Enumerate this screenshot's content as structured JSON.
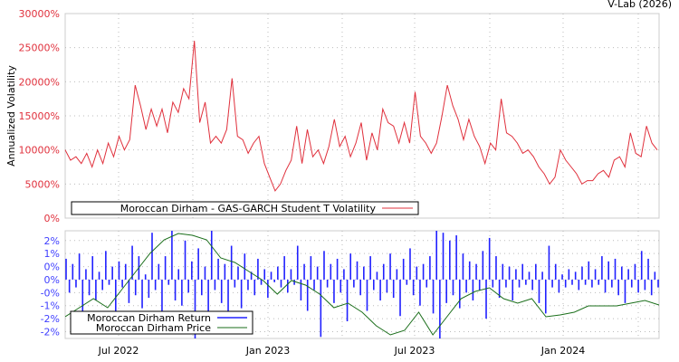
{
  "credit": "V-Lab (2026)",
  "chart_data": [
    {
      "type": "line",
      "title": "",
      "ylabel": "Annualized Volatility",
      "xlabel": "",
      "ylim": [
        0,
        30000
      ],
      "grid": true,
      "y_ticks": [
        {
          "value": 0,
          "label": "0%"
        },
        {
          "value": 5000,
          "label": "5000%"
        },
        {
          "value": 10000,
          "label": "10000%"
        },
        {
          "value": 15000,
          "label": "15000%"
        },
        {
          "value": 20000,
          "label": "20000%"
        },
        {
          "value": 25000,
          "label": "25000%"
        },
        {
          "value": 30000,
          "label": "30000%"
        }
      ],
      "legend": {
        "label": "Moroccan Dirham - GAS-GARCH Student T Volatility",
        "placement": "bottom-left"
      },
      "color": "#e0303c",
      "series": [
        {
          "name": "Moroccan Dirham - GAS-GARCH Student T Volatility",
          "values": [
            10000,
            8500,
            9000,
            8000,
            9500,
            7500,
            10000,
            8000,
            11000,
            9000,
            12000,
            10000,
            11500,
            19500,
            16500,
            13000,
            16000,
            13500,
            16000,
            12500,
            17000,
            15500,
            19000,
            17500,
            26000,
            14000,
            17000,
            11000,
            12000,
            11000,
            13000,
            20500,
            12000,
            11500,
            9500,
            11000,
            12000,
            8000,
            6000,
            4000,
            5000,
            7000,
            8500,
            13500,
            8000,
            13000,
            9000,
            10000,
            8000,
            10500,
            14500,
            10500,
            12000,
            9000,
            11000,
            14000,
            8500,
            12500,
            10000,
            16000,
            14000,
            13500,
            11000,
            14000,
            11000,
            18500,
            12000,
            11000,
            9500,
            11000,
            15000,
            19500,
            16500,
            14500,
            11500,
            14500,
            12000,
            10500,
            8000,
            11000,
            10000,
            17500,
            12500,
            12000,
            11000,
            9500,
            10000,
            9000,
            7500,
            6500,
            5000,
            6000,
            10000,
            8500,
            7500,
            6500,
            5000,
            5500,
            5500,
            6500,
            7000,
            6000,
            8500,
            9000,
            7500,
            12500,
            9500,
            9000,
            13500,
            11000,
            10000
          ]
        }
      ]
    },
    {
      "type": "bar",
      "title": "",
      "ylabel": "",
      "ylim": [
        -2.26,
        1.875
      ],
      "grid": true,
      "y_ticks": [
        {
          "value": 1.5,
          "label": "2%"
        },
        {
          "value": 1.0,
          "label": "1%"
        },
        {
          "value": 0.5,
          "label": "0%"
        },
        {
          "value": 0,
          "label": "0%"
        },
        {
          "value": -0.5,
          "label": "-0%"
        },
        {
          "value": -1.0,
          "label": "-1%"
        },
        {
          "value": -1.5,
          "label": "-2%"
        },
        {
          "value": -2.0,
          "label": "-2%"
        }
      ],
      "x_ticks": [
        "Jul 2022",
        "Jan 2023",
        "Jul 2023",
        "Jan 2024"
      ],
      "legend": [
        {
          "label": "Moroccan Dirham Return",
          "color": "#2020ff"
        },
        {
          "label": "Moroccan Dirham Price",
          "color": "#1a6e1a"
        }
      ],
      "legend_placement": "bottom-left",
      "returns": [
        0.8,
        -0.5,
        0.6,
        -0.3,
        1.0,
        -1.2,
        0.4,
        -0.6,
        0.9,
        -0.8,
        0.3,
        -0.4,
        1.1,
        -0.2,
        0.5,
        -1.5,
        0.7,
        -0.3,
        0.6,
        -0.9,
        1.3,
        -0.6,
        0.9,
        -1.1,
        0.2,
        -0.7,
        1.8,
        -0.4,
        0.6,
        -1.4,
        0.9,
        -0.2,
        2.6,
        -0.8,
        0.4,
        -1.0,
        1.5,
        -0.5,
        0.7,
        -2.6,
        1.2,
        -0.6,
        0.5,
        -1.3,
        2.2,
        -0.4,
        0.8,
        -0.9,
        0.6,
        -1.7,
        1.3,
        -0.3,
        0.5,
        -1.1,
        1.0,
        -0.4,
        0.3,
        -0.6,
        0.8,
        -0.2,
        0.4,
        -0.7,
        0.3,
        -0.1,
        0.5,
        -0.3,
        0.9,
        -0.5,
        0.4,
        -0.2,
        1.3,
        -0.8,
        0.6,
        -1.2,
        0.9,
        -0.4,
        0.5,
        -2.2,
        1.1,
        -0.3,
        0.6,
        -0.9,
        0.8,
        -0.5,
        0.4,
        -1.6,
        1.0,
        -0.3,
        0.7,
        -0.6,
        0.5,
        -1.2,
        0.9,
        -0.4,
        0.3,
        -0.8,
        0.6,
        -0.5,
        1.0,
        -0.7,
        0.4,
        -1.4,
        0.8,
        -0.2,
        1.2,
        -0.6,
        0.5,
        -1.0,
        0.6,
        -0.3,
        0.9,
        -1.3,
        2.6,
        -2.4,
        1.8,
        -0.9,
        1.5,
        -0.6,
        1.7,
        -1.1,
        1.0,
        -0.5,
        0.7,
        -0.8,
        0.6,
        -0.4,
        1.1,
        -1.5,
        1.6,
        -0.3,
        0.9,
        -0.7,
        0.6,
        -0.3,
        0.5,
        -0.8,
        0.4,
        -0.3,
        0.6,
        -0.2,
        0.3,
        -0.4,
        0.6,
        -0.9,
        0.3,
        -1.3,
        1.3,
        -0.3,
        0.6,
        -0.5,
        0.2,
        -0.3,
        0.4,
        -0.2,
        0.3,
        -0.4,
        0.5,
        -0.2,
        0.7,
        -0.3,
        0.4,
        -0.2,
        0.9,
        -0.5,
        0.7,
        -0.3,
        0.8,
        -0.6,
        0.5,
        -0.9,
        0.4,
        -0.3,
        0.6,
        -0.5,
        1.1,
        -0.4,
        0.8,
        -0.6,
        0.3,
        -0.3
      ],
      "price_index": [
        24,
        34,
        44,
        34,
        54,
        74,
        94,
        109,
        116,
        114,
        109,
        89,
        84,
        74,
        64,
        49,
        64,
        59,
        49,
        34,
        39,
        29,
        14,
        4,
        9,
        29,
        4,
        24,
        44,
        52,
        56,
        44,
        39,
        44,
        24,
        26,
        29,
        36,
        36,
        36,
        39,
        42,
        37
      ],
      "price_color": "#1a6e1a",
      "return_color": "#2020ff"
    }
  ]
}
